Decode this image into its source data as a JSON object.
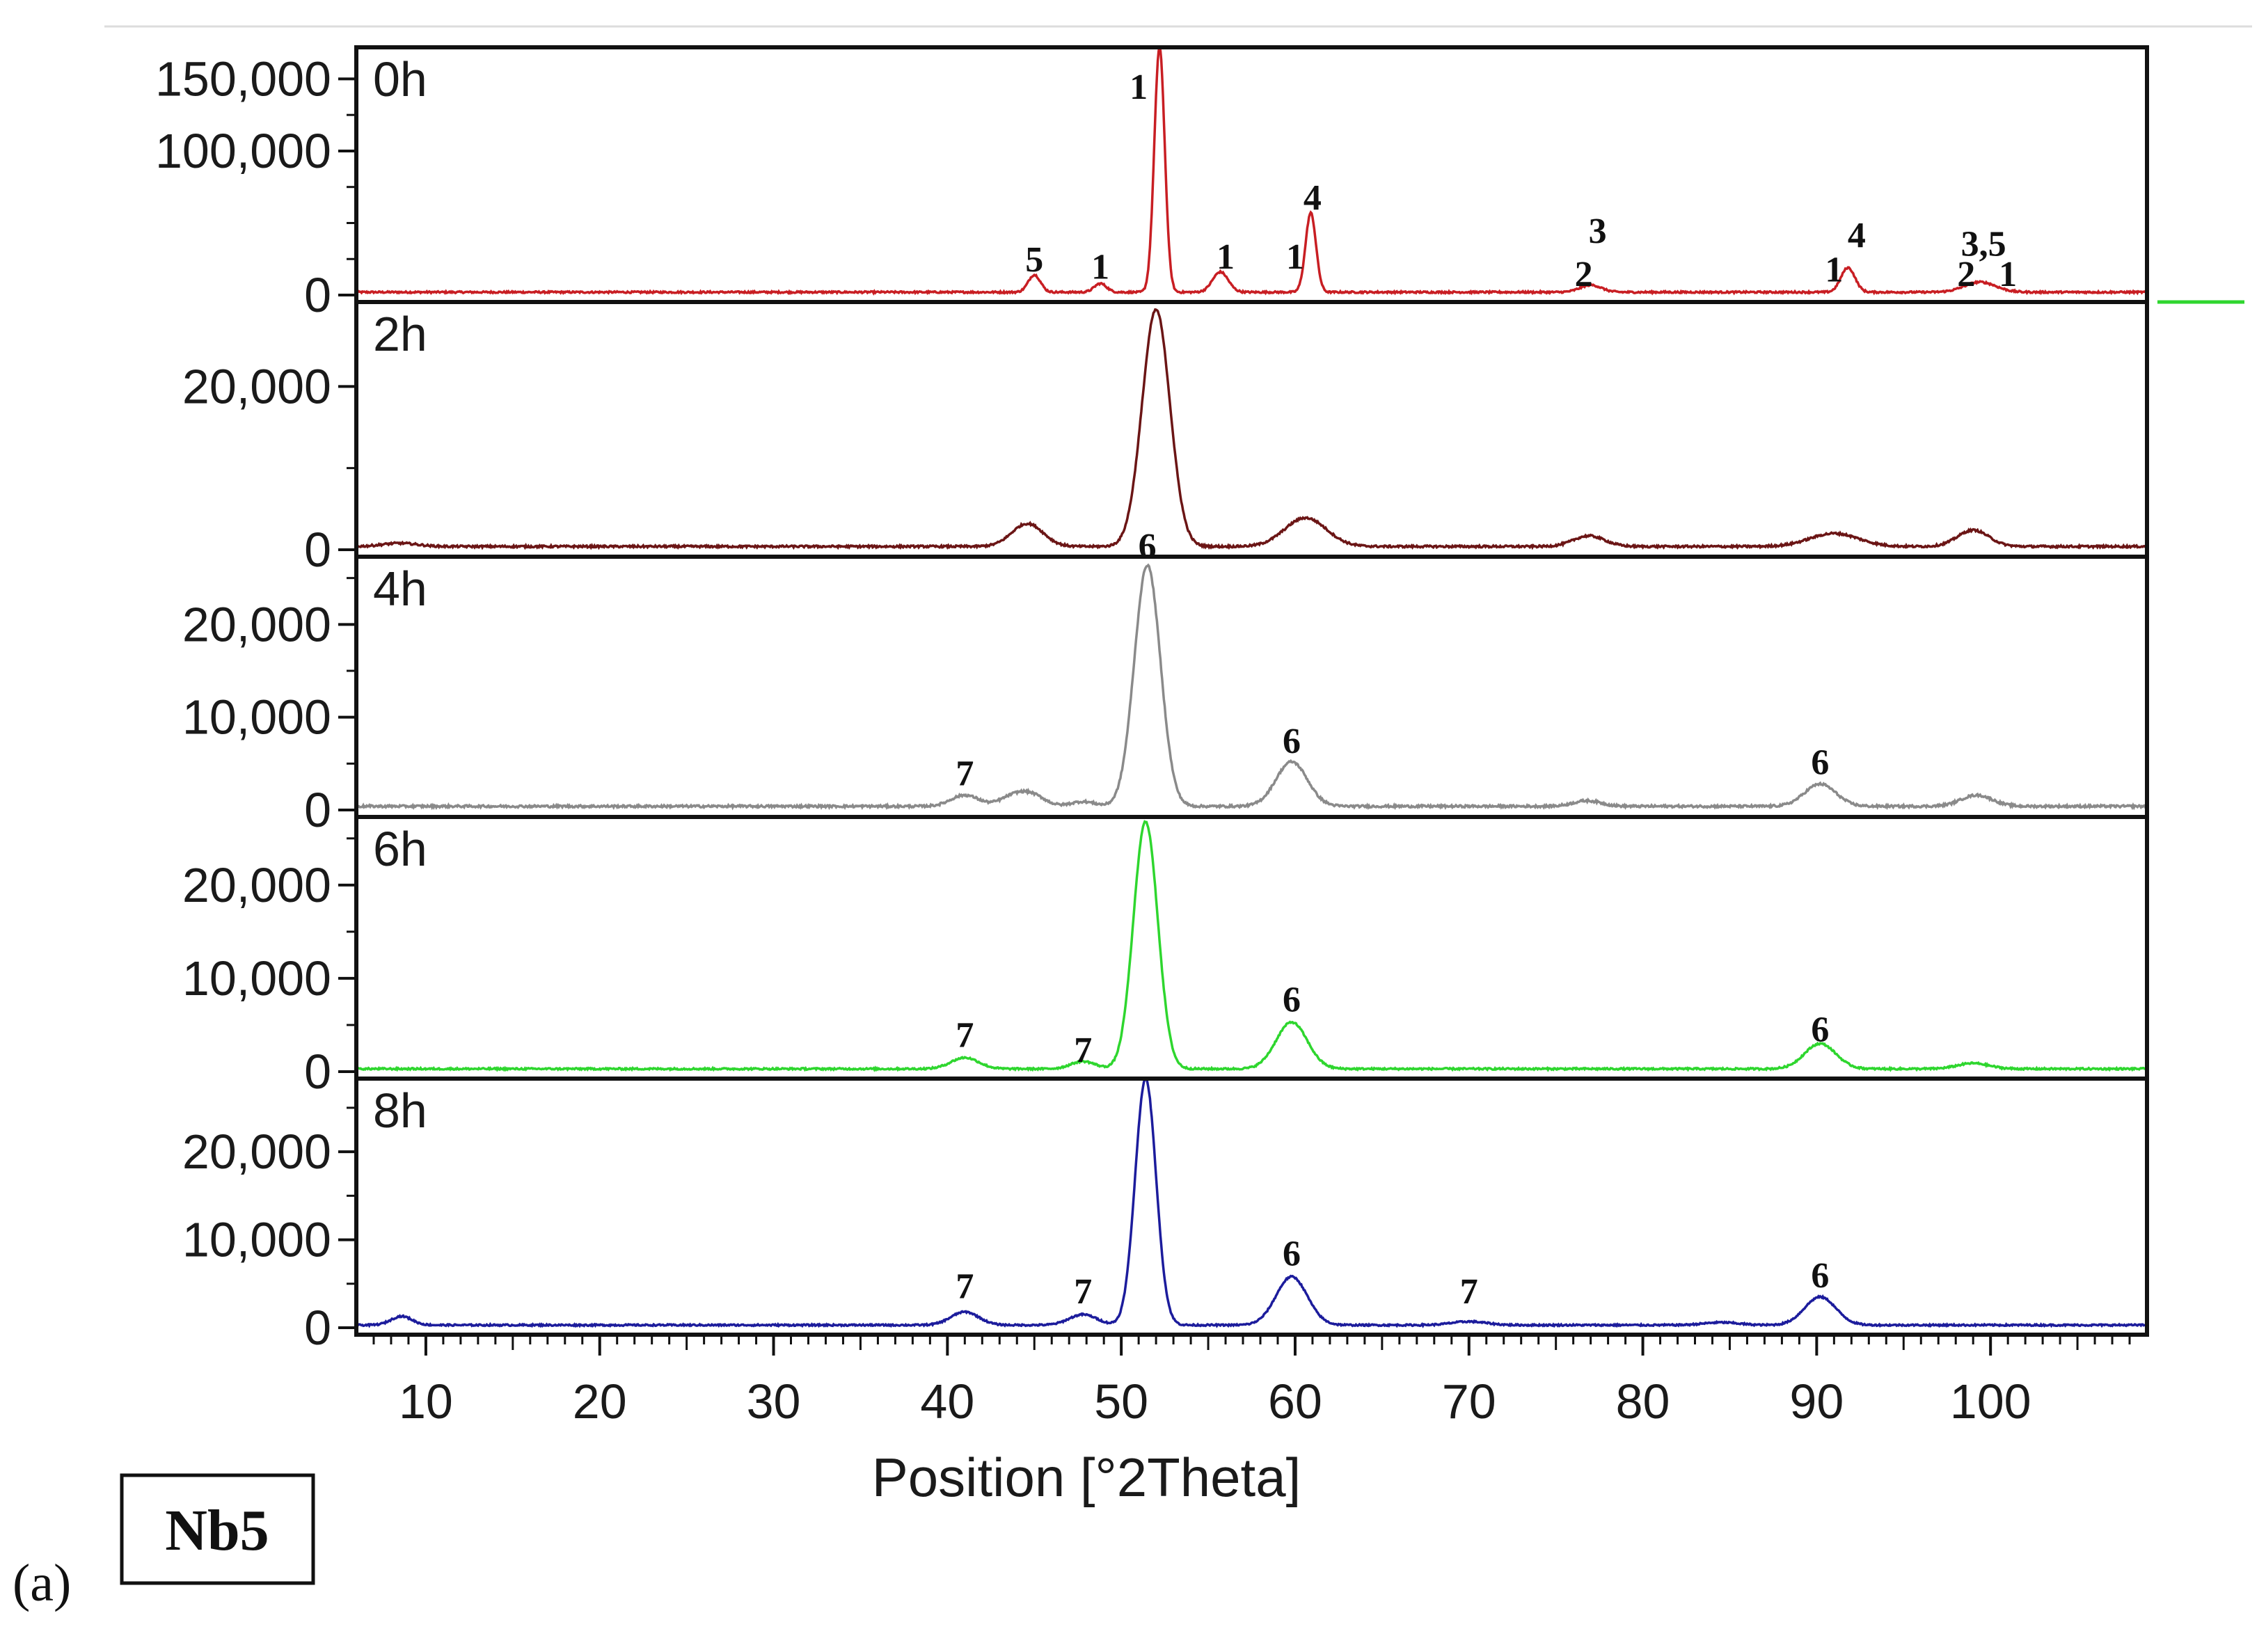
{
  "chart_data": {
    "type": "line",
    "title": "",
    "xlabel": "Position [°2Theta]",
    "xlim": [
      6,
      109
    ],
    "x_ticks": [
      10,
      20,
      30,
      40,
      50,
      60,
      70,
      80,
      90,
      100
    ],
    "sample_label": "Nb5",
    "subfigure_label": "(a)",
    "colors": {
      "0h": "#c81e23",
      "2h": "#6b1515",
      "4h": "#8a8a8a",
      "6h": "#2ed62e",
      "8h": "#1c1c9c"
    },
    "panels": [
      {
        "name": "0h",
        "ylim": [
          0,
          170000
        ],
        "y_ticks": [
          0,
          100000,
          150000
        ],
        "y_tick_labels": [
          "0",
          "100,000",
          "150,000"
        ],
        "baseline": 2000,
        "peaks": [
          [
            45.0,
            12000,
            0.35
          ],
          [
            48.8,
            6000,
            0.35
          ],
          [
            52.2,
            170000,
            0.3
          ],
          [
            55.7,
            14000,
            0.45
          ],
          [
            60.9,
            55000,
            0.3
          ],
          [
            77.0,
            5000,
            0.6
          ],
          [
            91.8,
            17000,
            0.4
          ],
          [
            99.4,
            7000,
            0.9
          ]
        ],
        "annotations": [
          {
            "text": "5",
            "x": 45.0,
            "y": 25000
          },
          {
            "text": "1",
            "x": 48.8,
            "y": 20000
          },
          {
            "text": "1",
            "x": 51.0,
            "y": 145000
          },
          {
            "text": "1",
            "x": 56.0,
            "y": 27000
          },
          {
            "text": "4",
            "x": 61.0,
            "y": 68000
          },
          {
            "text": "1",
            "x": 60.0,
            "y": 27000
          },
          {
            "text": "3",
            "x": 77.4,
            "y": 45000
          },
          {
            "text": "2",
            "x": 76.6,
            "y": 15000
          },
          {
            "text": "4",
            "x": 92.3,
            "y": 42000
          },
          {
            "text": "1",
            "x": 91.0,
            "y": 18000
          },
          {
            "text": "3,5",
            "x": 99.6,
            "y": 36000
          },
          {
            "text": "2",
            "x": 98.6,
            "y": 15000
          },
          {
            "text": "1",
            "x": 101.0,
            "y": 15000
          }
        ]
      },
      {
        "name": "2h",
        "ylim": [
          0,
          30000
        ],
        "y_ticks": [
          0,
          20000
        ],
        "y_tick_labels": [
          "0",
          "20,000"
        ],
        "baseline": 400,
        "peaks": [
          [
            8.5,
            400,
            1.0
          ],
          [
            44.6,
            2800,
            0.9
          ],
          [
            52.0,
            29000,
            0.8
          ],
          [
            60.6,
            3500,
            1.2
          ],
          [
            76.9,
            1300,
            0.9
          ],
          [
            91.0,
            1600,
            1.4
          ],
          [
            99.0,
            2000,
            0.9
          ]
        ],
        "annotations": []
      },
      {
        "name": "4h",
        "ylim": [
          0,
          27000
        ],
        "y_ticks": [
          0,
          10000,
          20000
        ],
        "y_tick_labels": [
          "0",
          "10,000",
          "20,000"
        ],
        "baseline": 400,
        "peaks": [
          [
            41.0,
            1200,
            0.8
          ],
          [
            43.9,
            1200,
            0.8
          ],
          [
            45.0,
            900,
            0.7
          ],
          [
            47.8,
            500,
            0.7
          ],
          [
            51.5,
            26000,
            0.75
          ],
          [
            59.8,
            4800,
            0.9
          ],
          [
            76.8,
            600,
            0.8
          ],
          [
            90.2,
            2400,
            0.9
          ],
          [
            99.2,
            1200,
            0.9
          ]
        ],
        "annotations": [
          {
            "text": "6",
            "x": 51.5,
            "y": 28500
          },
          {
            "text": "7",
            "x": 41.0,
            "y": 4000
          },
          {
            "text": "6",
            "x": 59.8,
            "y": 7500
          },
          {
            "text": "6",
            "x": 90.2,
            "y": 5200
          }
        ]
      },
      {
        "name": "6h",
        "ylim": [
          0,
          27000
        ],
        "y_ticks": [
          0,
          10000,
          20000
        ],
        "y_tick_labels": [
          "0",
          "10,000",
          "20,000"
        ],
        "baseline": 300,
        "peaks": [
          [
            41.0,
            1200,
            0.8
          ],
          [
            47.8,
            800,
            0.7
          ],
          [
            51.4,
            26500,
            0.7
          ],
          [
            59.8,
            5000,
            0.9
          ],
          [
            90.2,
            2700,
            0.9
          ],
          [
            99.0,
            600,
            0.9
          ]
        ],
        "annotations": [
          {
            "text": "7",
            "x": 41.0,
            "y": 4000
          },
          {
            "text": "7",
            "x": 47.8,
            "y": 2400
          },
          {
            "text": "6",
            "x": 59.8,
            "y": 7800
          },
          {
            "text": "6",
            "x": 90.2,
            "y": 4600
          }
        ]
      },
      {
        "name": "8h",
        "ylim": [
          0,
          28000
        ],
        "y_ticks": [
          0,
          10000,
          20000
        ],
        "y_tick_labels": [
          "0",
          "10,000",
          "20,000"
        ],
        "baseline": 300,
        "peaks": [
          [
            8.6,
            1000,
            0.6
          ],
          [
            41.0,
            1500,
            0.8
          ],
          [
            47.8,
            1200,
            0.8
          ],
          [
            51.4,
            28000,
            0.6
          ],
          [
            59.8,
            5500,
            0.9
          ],
          [
            70.0,
            400,
            1.0
          ],
          [
            84.5,
            300,
            1.0
          ],
          [
            90.2,
            3200,
            0.9
          ]
        ],
        "annotations": [
          {
            "text": "7",
            "x": 41.0,
            "y": 4800
          },
          {
            "text": "7",
            "x": 47.8,
            "y": 4200
          },
          {
            "text": "6",
            "x": 59.8,
            "y": 8500
          },
          {
            "text": "7",
            "x": 70.0,
            "y": 4200
          },
          {
            "text": "6",
            "x": 90.2,
            "y": 6000
          }
        ]
      }
    ]
  }
}
